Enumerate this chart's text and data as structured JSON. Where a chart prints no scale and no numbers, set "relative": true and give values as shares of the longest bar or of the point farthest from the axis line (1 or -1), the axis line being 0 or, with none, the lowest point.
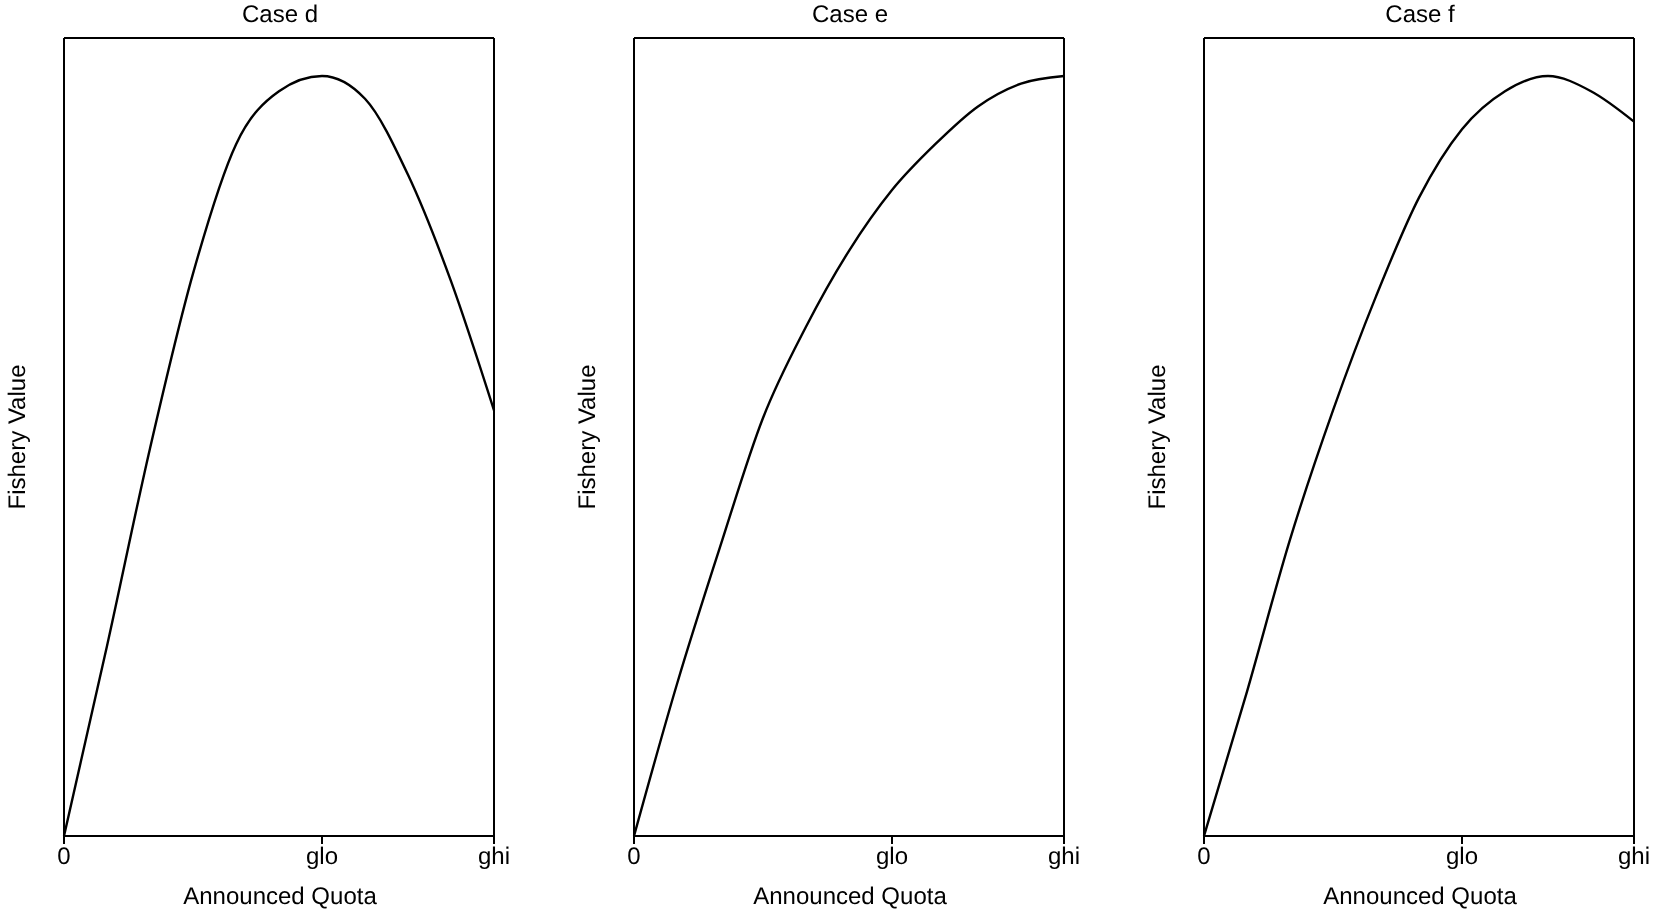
{
  "chart_data": [
    {
      "type": "line",
      "title": "Case d",
      "xlabel": "Announced Quota",
      "ylabel": "Fishery Value",
      "relative": true,
      "categories": [
        "0",
        null,
        null,
        null,
        null,
        null,
        "glo",
        null,
        null,
        null,
        "ghi"
      ],
      "series": [
        {
          "color": "#000000",
          "values": [
            0,
            0.25,
            0.51,
            0.74,
            0.91,
            0.98,
            1,
            0.97,
            0.87,
            0.73,
            0.56
          ]
        }
      ]
    },
    {
      "type": "line",
      "title": "Case e",
      "xlabel": "Announced Quota",
      "ylabel": "Fishery Value",
      "relative": true,
      "categories": [
        "0",
        null,
        null,
        null,
        null,
        null,
        "glo",
        null,
        null,
        null,
        "ghi"
      ],
      "series": [
        {
          "color": "#000000",
          "values": [
            0,
            0.2,
            0.38,
            0.55,
            0.67,
            0.77,
            0.85,
            0.91,
            0.96,
            0.99,
            1
          ]
        }
      ]
    },
    {
      "type": "line",
      "title": "Case f",
      "xlabel": "Announced Quota",
      "ylabel": "Fishery Value",
      "relative": true,
      "categories": [
        "0",
        null,
        null,
        null,
        null,
        null,
        "glo",
        null,
        null,
        null,
        "ghi"
      ],
      "series": [
        {
          "color": "#000000",
          "values": [
            0,
            0.19,
            0.39,
            0.56,
            0.71,
            0.84,
            0.93,
            0.98,
            1,
            0.98,
            0.94
          ]
        }
      ]
    }
  ]
}
